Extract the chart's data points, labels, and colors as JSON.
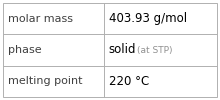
{
  "rows": [
    {
      "label": "molar mass",
      "value": "403.93 g/mol",
      "value_extra": false,
      "value_extra_text": null
    },
    {
      "label": "phase",
      "value": "solid",
      "value_extra": true,
      "value_extra_text": "(at STP)"
    },
    {
      "label": "melting point",
      "value": "220 °C",
      "value_extra": false,
      "value_extra_text": null
    }
  ],
  "col_split": 0.47,
  "background_color": "#ffffff",
  "border_color": "#b0b0b0",
  "label_color": "#404040",
  "value_color": "#000000",
  "extra_color": "#909090",
  "label_fontsize": 8.0,
  "value_fontsize": 8.5,
  "extra_fontsize": 6.5,
  "font_family": "DejaVu Sans",
  "fig_width": 2.2,
  "fig_height": 1.0,
  "dpi": 100
}
